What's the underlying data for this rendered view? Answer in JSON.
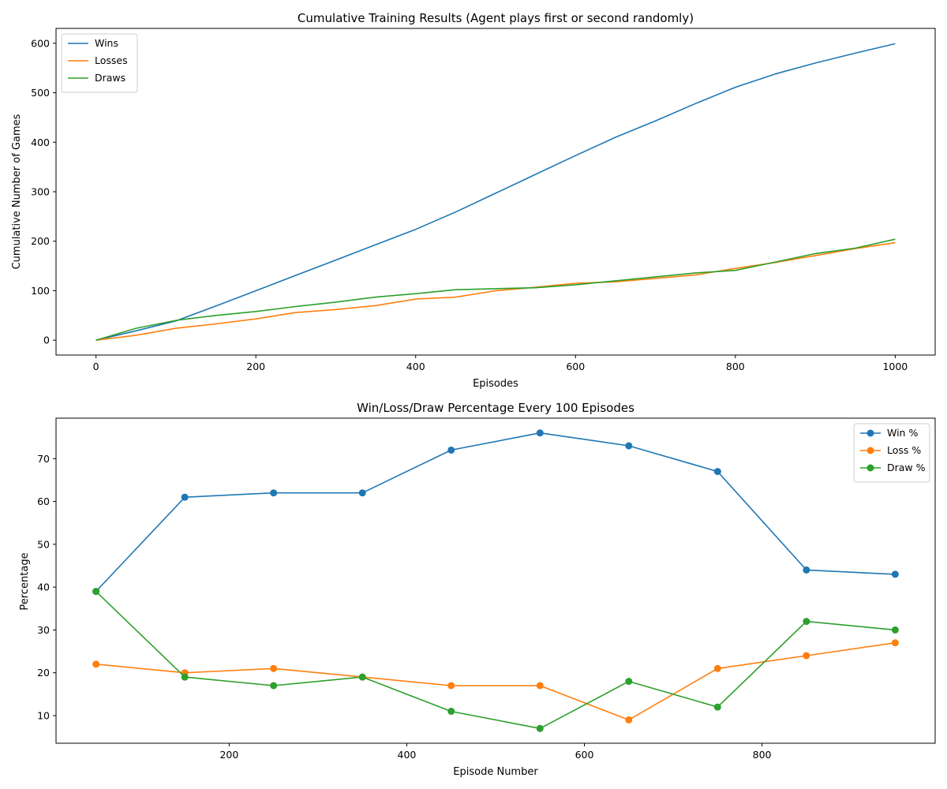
{
  "chart_data": [
    {
      "type": "line",
      "title": "Cumulative Training Results (Agent plays first or second randomly)",
      "xlabel": "Episodes",
      "ylabel": "Cumulative Number of Games",
      "xlim": [
        -50,
        1050
      ],
      "ylim": [
        -30,
        630
      ],
      "xticks": [
        0,
        200,
        400,
        600,
        800,
        1000
      ],
      "yticks": [
        0,
        100,
        200,
        300,
        400,
        500,
        600
      ],
      "grid": false,
      "legend": "top-left",
      "x": [
        0,
        50,
        100,
        150,
        200,
        250,
        300,
        350,
        400,
        450,
        500,
        550,
        600,
        650,
        700,
        750,
        800,
        850,
        900,
        950,
        1000
      ],
      "series": [
        {
          "name": "Wins",
          "color": "#1f77b4",
          "values": [
            0,
            19,
            39,
            69,
            100,
            131,
            162,
            193,
            224,
            259,
            297,
            335,
            373,
            410,
            443,
            478,
            511,
            538,
            560,
            580,
            599
          ]
        },
        {
          "name": "Losses",
          "color": "#ff7f0e",
          "values": [
            0,
            10,
            24,
            33,
            43,
            56,
            62,
            70,
            83,
            87,
            100,
            107,
            115,
            118,
            125,
            132,
            145,
            157,
            171,
            185,
            197
          ]
        },
        {
          "name": "Draws",
          "color": "#2ca02c",
          "values": [
            0,
            24,
            40,
            50,
            58,
            68,
            77,
            87,
            94,
            102,
            104,
            106,
            112,
            120,
            128,
            136,
            141,
            158,
            175,
            186,
            204
          ]
        }
      ]
    },
    {
      "type": "line",
      "title": "Win/Loss/Draw Percentage Every 100 Episodes",
      "xlabel": "Episode Number",
      "ylabel": "Percentage",
      "xlim": [
        5,
        995
      ],
      "ylim": [
        3.55,
        79.45
      ],
      "xticks": [
        200,
        400,
        600,
        800
      ],
      "yticks": [
        10,
        20,
        30,
        40,
        50,
        60,
        70
      ],
      "grid": false,
      "legend": "top-right",
      "markers": true,
      "x": [
        50,
        150,
        250,
        350,
        450,
        550,
        650,
        750,
        850,
        950
      ],
      "series": [
        {
          "name": "Win %",
          "color": "#1f77b4",
          "values": [
            39,
            61,
            62,
            62,
            72,
            76,
            73,
            67,
            44,
            43
          ]
        },
        {
          "name": "Loss %",
          "color": "#ff7f0e",
          "values": [
            22,
            20,
            21,
            19,
            17,
            17,
            9,
            21,
            24,
            27
          ]
        },
        {
          "name": "Draw %",
          "color": "#2ca02c",
          "values": [
            39,
            19,
            17,
            19,
            11,
            7,
            18,
            12,
            32,
            30
          ]
        }
      ]
    }
  ]
}
